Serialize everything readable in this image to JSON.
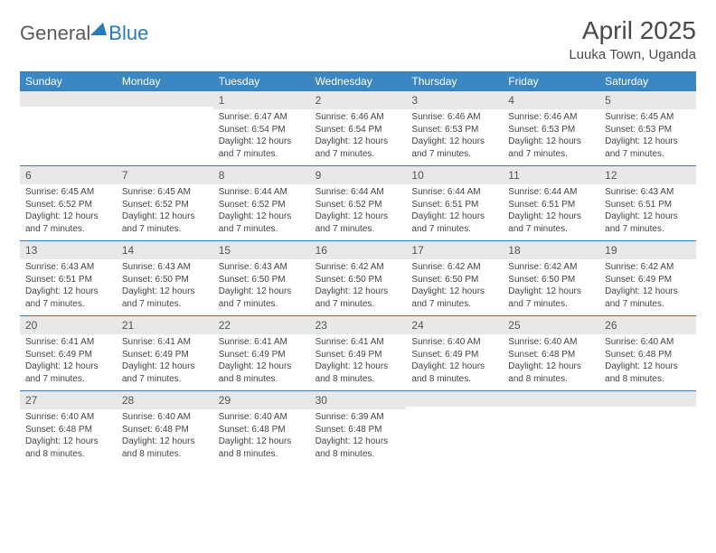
{
  "logo": {
    "text1": "General",
    "text2": "Blue"
  },
  "title": "April 2025",
  "location": "Luuka Town, Uganda",
  "colors": {
    "header_bg": "#3a87c4",
    "header_text": "#ffffff",
    "border": "#3a7ab0",
    "daynum_bg": "#e8e8e8",
    "text": "#444444"
  },
  "layout": {
    "columns": 7,
    "rows": 5,
    "leading_blanks": 2
  },
  "day_headers": [
    "Sunday",
    "Monday",
    "Tuesday",
    "Wednesday",
    "Thursday",
    "Friday",
    "Saturday"
  ],
  "days": [
    {
      "n": "1",
      "sunrise": "Sunrise: 6:47 AM",
      "sunset": "Sunset: 6:54 PM",
      "d1": "Daylight: 12 hours",
      "d2": "and 7 minutes."
    },
    {
      "n": "2",
      "sunrise": "Sunrise: 6:46 AM",
      "sunset": "Sunset: 6:54 PM",
      "d1": "Daylight: 12 hours",
      "d2": "and 7 minutes."
    },
    {
      "n": "3",
      "sunrise": "Sunrise: 6:46 AM",
      "sunset": "Sunset: 6:53 PM",
      "d1": "Daylight: 12 hours",
      "d2": "and 7 minutes."
    },
    {
      "n": "4",
      "sunrise": "Sunrise: 6:46 AM",
      "sunset": "Sunset: 6:53 PM",
      "d1": "Daylight: 12 hours",
      "d2": "and 7 minutes."
    },
    {
      "n": "5",
      "sunrise": "Sunrise: 6:45 AM",
      "sunset": "Sunset: 6:53 PM",
      "d1": "Daylight: 12 hours",
      "d2": "and 7 minutes."
    },
    {
      "n": "6",
      "sunrise": "Sunrise: 6:45 AM",
      "sunset": "Sunset: 6:52 PM",
      "d1": "Daylight: 12 hours",
      "d2": "and 7 minutes."
    },
    {
      "n": "7",
      "sunrise": "Sunrise: 6:45 AM",
      "sunset": "Sunset: 6:52 PM",
      "d1": "Daylight: 12 hours",
      "d2": "and 7 minutes."
    },
    {
      "n": "8",
      "sunrise": "Sunrise: 6:44 AM",
      "sunset": "Sunset: 6:52 PM",
      "d1": "Daylight: 12 hours",
      "d2": "and 7 minutes."
    },
    {
      "n": "9",
      "sunrise": "Sunrise: 6:44 AM",
      "sunset": "Sunset: 6:52 PM",
      "d1": "Daylight: 12 hours",
      "d2": "and 7 minutes."
    },
    {
      "n": "10",
      "sunrise": "Sunrise: 6:44 AM",
      "sunset": "Sunset: 6:51 PM",
      "d1": "Daylight: 12 hours",
      "d2": "and 7 minutes."
    },
    {
      "n": "11",
      "sunrise": "Sunrise: 6:44 AM",
      "sunset": "Sunset: 6:51 PM",
      "d1": "Daylight: 12 hours",
      "d2": "and 7 minutes."
    },
    {
      "n": "12",
      "sunrise": "Sunrise: 6:43 AM",
      "sunset": "Sunset: 6:51 PM",
      "d1": "Daylight: 12 hours",
      "d2": "and 7 minutes."
    },
    {
      "n": "13",
      "sunrise": "Sunrise: 6:43 AM",
      "sunset": "Sunset: 6:51 PM",
      "d1": "Daylight: 12 hours",
      "d2": "and 7 minutes."
    },
    {
      "n": "14",
      "sunrise": "Sunrise: 6:43 AM",
      "sunset": "Sunset: 6:50 PM",
      "d1": "Daylight: 12 hours",
      "d2": "and 7 minutes."
    },
    {
      "n": "15",
      "sunrise": "Sunrise: 6:43 AM",
      "sunset": "Sunset: 6:50 PM",
      "d1": "Daylight: 12 hours",
      "d2": "and 7 minutes."
    },
    {
      "n": "16",
      "sunrise": "Sunrise: 6:42 AM",
      "sunset": "Sunset: 6:50 PM",
      "d1": "Daylight: 12 hours",
      "d2": "and 7 minutes."
    },
    {
      "n": "17",
      "sunrise": "Sunrise: 6:42 AM",
      "sunset": "Sunset: 6:50 PM",
      "d1": "Daylight: 12 hours",
      "d2": "and 7 minutes."
    },
    {
      "n": "18",
      "sunrise": "Sunrise: 6:42 AM",
      "sunset": "Sunset: 6:50 PM",
      "d1": "Daylight: 12 hours",
      "d2": "and 7 minutes."
    },
    {
      "n": "19",
      "sunrise": "Sunrise: 6:42 AM",
      "sunset": "Sunset: 6:49 PM",
      "d1": "Daylight: 12 hours",
      "d2": "and 7 minutes."
    },
    {
      "n": "20",
      "sunrise": "Sunrise: 6:41 AM",
      "sunset": "Sunset: 6:49 PM",
      "d1": "Daylight: 12 hours",
      "d2": "and 7 minutes."
    },
    {
      "n": "21",
      "sunrise": "Sunrise: 6:41 AM",
      "sunset": "Sunset: 6:49 PM",
      "d1": "Daylight: 12 hours",
      "d2": "and 7 minutes."
    },
    {
      "n": "22",
      "sunrise": "Sunrise: 6:41 AM",
      "sunset": "Sunset: 6:49 PM",
      "d1": "Daylight: 12 hours",
      "d2": "and 8 minutes."
    },
    {
      "n": "23",
      "sunrise": "Sunrise: 6:41 AM",
      "sunset": "Sunset: 6:49 PM",
      "d1": "Daylight: 12 hours",
      "d2": "and 8 minutes."
    },
    {
      "n": "24",
      "sunrise": "Sunrise: 6:40 AM",
      "sunset": "Sunset: 6:49 PM",
      "d1": "Daylight: 12 hours",
      "d2": "and 8 minutes."
    },
    {
      "n": "25",
      "sunrise": "Sunrise: 6:40 AM",
      "sunset": "Sunset: 6:48 PM",
      "d1": "Daylight: 12 hours",
      "d2": "and 8 minutes."
    },
    {
      "n": "26",
      "sunrise": "Sunrise: 6:40 AM",
      "sunset": "Sunset: 6:48 PM",
      "d1": "Daylight: 12 hours",
      "d2": "and 8 minutes."
    },
    {
      "n": "27",
      "sunrise": "Sunrise: 6:40 AM",
      "sunset": "Sunset: 6:48 PM",
      "d1": "Daylight: 12 hours",
      "d2": "and 8 minutes."
    },
    {
      "n": "28",
      "sunrise": "Sunrise: 6:40 AM",
      "sunset": "Sunset: 6:48 PM",
      "d1": "Daylight: 12 hours",
      "d2": "and 8 minutes."
    },
    {
      "n": "29",
      "sunrise": "Sunrise: 6:40 AM",
      "sunset": "Sunset: 6:48 PM",
      "d1": "Daylight: 12 hours",
      "d2": "and 8 minutes."
    },
    {
      "n": "30",
      "sunrise": "Sunrise: 6:39 AM",
      "sunset": "Sunset: 6:48 PM",
      "d1": "Daylight: 12 hours",
      "d2": "and 8 minutes."
    }
  ]
}
